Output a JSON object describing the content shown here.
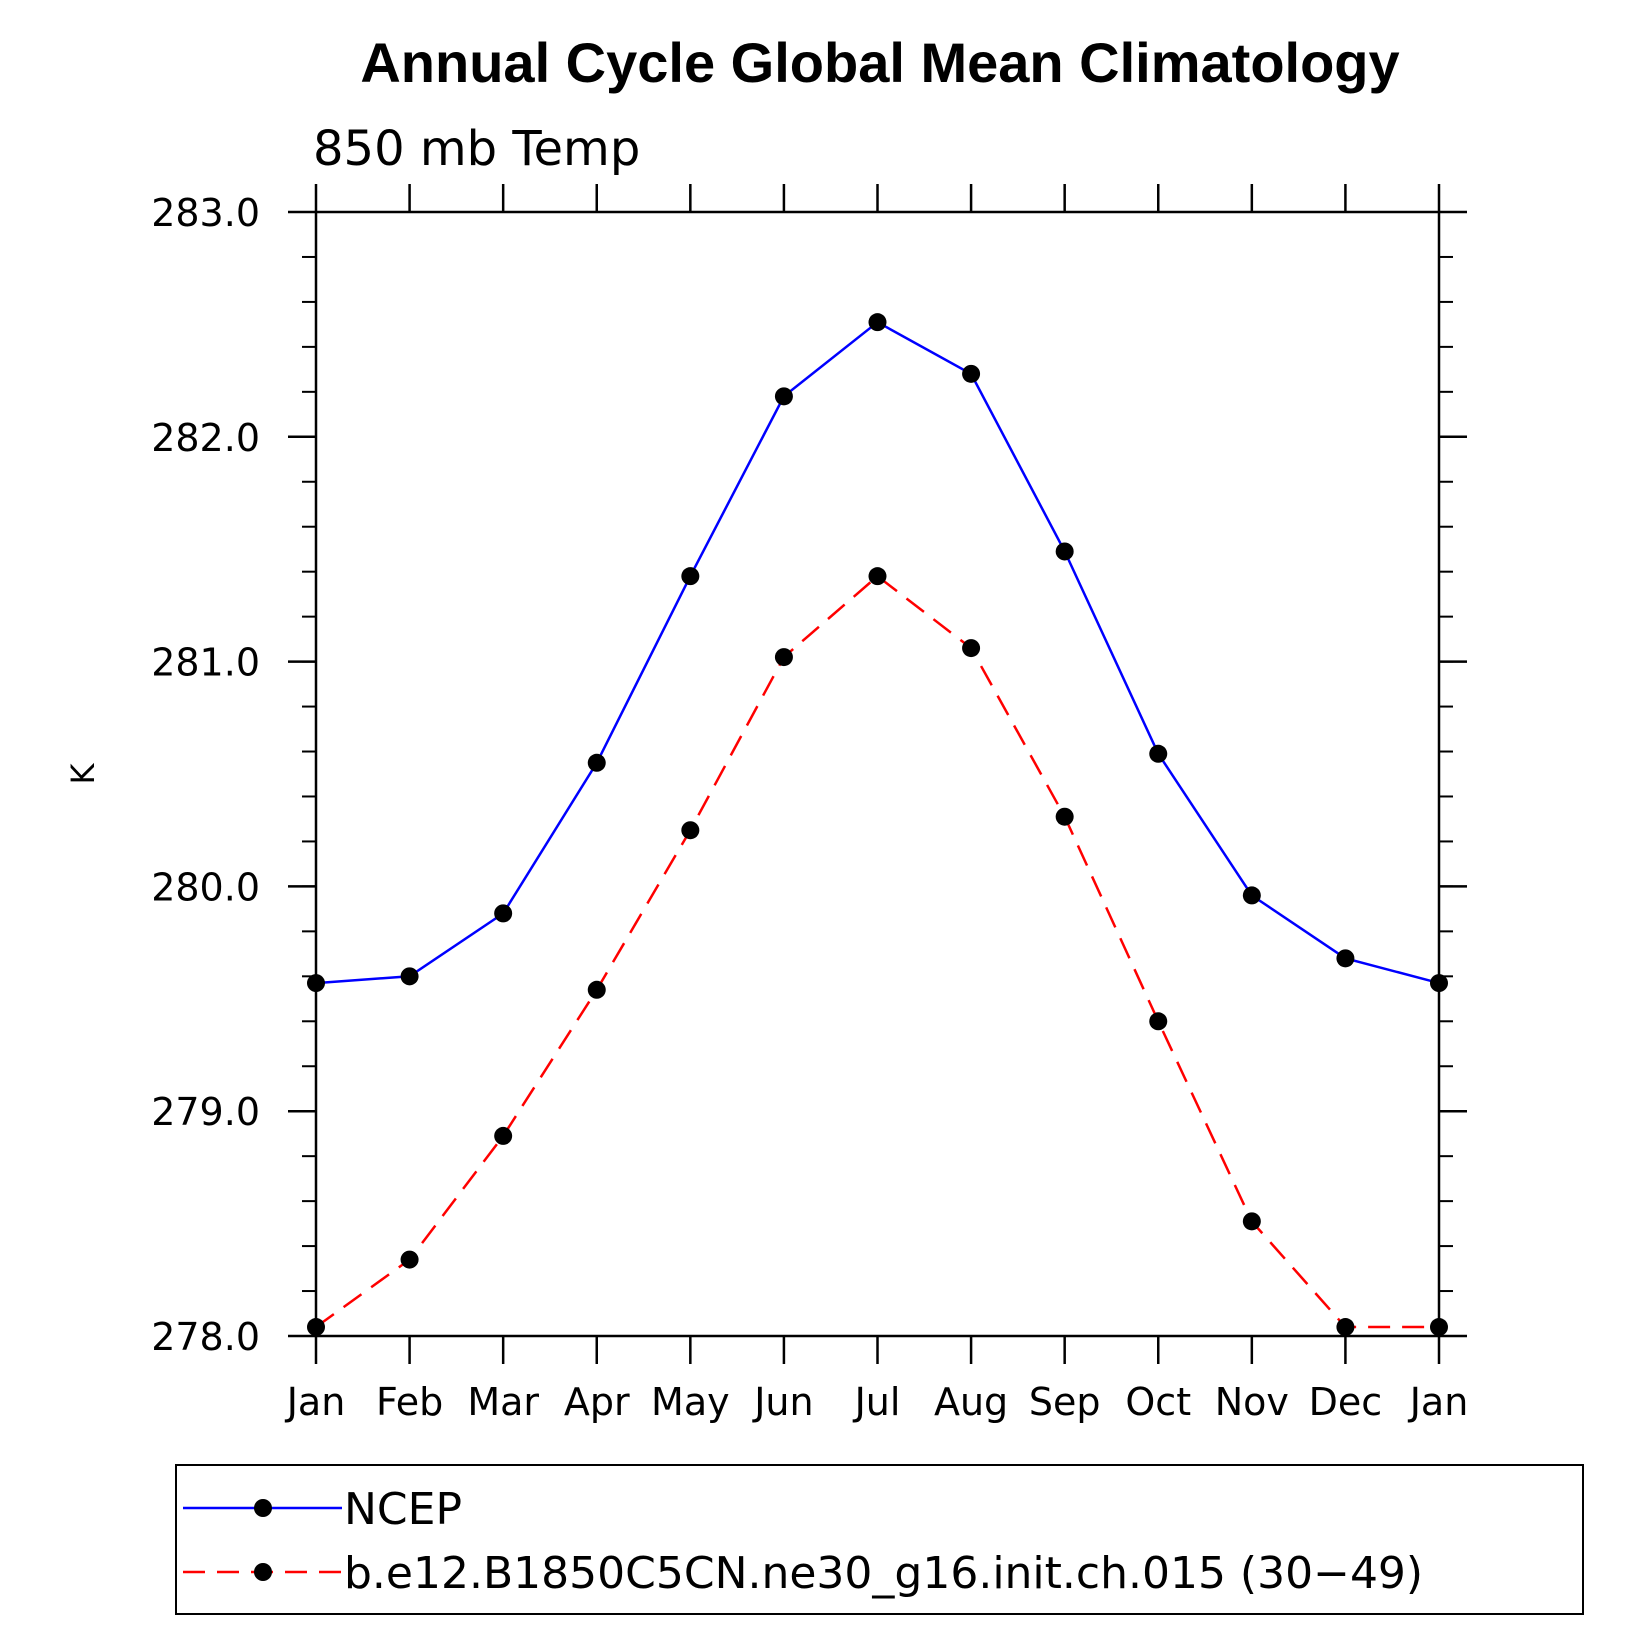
{
  "chart_data": {
    "type": "line",
    "title": "Annual Cycle Global Mean Climatology",
    "subtitle": "850 mb Temp",
    "ylabel": "K",
    "xlabel": "",
    "categories": [
      "Jan",
      "Feb",
      "Mar",
      "Apr",
      "May",
      "Jun",
      "Jul",
      "Aug",
      "Sep",
      "Oct",
      "Nov",
      "Dec",
      "Jan"
    ],
    "ylim": [
      278.0,
      283.0
    ],
    "yticks": [
      "278.0",
      "279.0",
      "280.0",
      "281.0",
      "282.0",
      "283.0"
    ],
    "series": [
      {
        "name": "NCEP",
        "color": "#0000ff",
        "dash": "solid",
        "values": [
          279.57,
          279.6,
          279.88,
          280.55,
          281.38,
          282.18,
          282.51,
          282.28,
          281.49,
          280.59,
          279.96,
          279.68,
          279.57
        ]
      },
      {
        "name": "b.e12.B1850C5CN.ne30_g16.init.ch.015 (30−49)",
        "color": "#ff0000",
        "dash": "dashed",
        "values": [
          278.04,
          278.34,
          278.89,
          279.54,
          280.25,
          281.02,
          281.38,
          281.06,
          280.31,
          279.4,
          278.51,
          278.04,
          278.04
        ]
      }
    ],
    "legend_position": "bottom",
    "grid": false
  }
}
